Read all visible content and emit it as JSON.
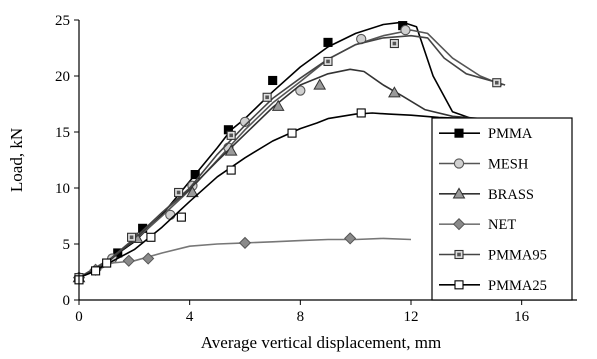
{
  "chart_data": {
    "type": "line",
    "xlabel": "Average vertical displacement, mm",
    "ylabel": "Load, kN",
    "xlim": [
      0,
      18
    ],
    "ylim": [
      0,
      25
    ],
    "xticks": [
      0,
      4,
      8,
      12,
      16
    ],
    "yticks": [
      0,
      5,
      10,
      15,
      20,
      25
    ],
    "grid": false,
    "legend_position": "right",
    "series": [
      {
        "name": "PMMA",
        "line_color": "#000000",
        "marker": "square",
        "marker_fill": "#000000",
        "marker_stroke": "#000000",
        "line": [
          [
            0,
            2
          ],
          [
            0.6,
            2.8
          ],
          [
            1.2,
            3.8
          ],
          [
            2,
            5.2
          ],
          [
            3,
            7.6
          ],
          [
            4,
            10.6
          ],
          [
            5,
            13.6
          ],
          [
            5.5,
            15.2
          ],
          [
            6,
            16.2
          ],
          [
            7,
            18.6
          ],
          [
            8,
            20.8
          ],
          [
            9,
            22.6
          ],
          [
            10,
            23.8
          ],
          [
            11,
            24.6
          ],
          [
            11.7,
            24.8
          ],
          [
            12.2,
            24.4
          ],
          [
            12.8,
            20
          ],
          [
            13.5,
            16.8
          ],
          [
            14.2,
            16.2
          ]
        ],
        "markers": [
          [
            0,
            2
          ],
          [
            1.4,
            4.2
          ],
          [
            2.3,
            6.4
          ],
          [
            4.2,
            11.2
          ],
          [
            5.4,
            15.2
          ],
          [
            7,
            19.6
          ],
          [
            9,
            23
          ],
          [
            11.7,
            24.5
          ]
        ]
      },
      {
        "name": "MESH",
        "line_color": "#555555",
        "marker": "circle",
        "marker_fill": "#d0d0d0",
        "marker_stroke": "#555555",
        "line": [
          [
            0,
            2
          ],
          [
            1,
            3.5
          ],
          [
            2,
            5.3
          ],
          [
            3,
            7.5
          ],
          [
            4,
            9.8
          ],
          [
            5,
            12.5
          ],
          [
            6,
            15.2
          ],
          [
            7,
            17.6
          ],
          [
            8,
            19.5
          ],
          [
            9,
            21.5
          ],
          [
            10,
            22.8
          ],
          [
            11,
            23.6
          ],
          [
            12,
            24.1
          ],
          [
            12.6,
            23.8
          ],
          [
            13.5,
            21.6
          ],
          [
            14.5,
            20
          ],
          [
            15.3,
            19.2
          ]
        ],
        "markers": [
          [
            0,
            2
          ],
          [
            1.2,
            3.7
          ],
          [
            3.3,
            7.6
          ],
          [
            4.1,
            10.2
          ],
          [
            5.4,
            13.6
          ],
          [
            6,
            15.9
          ],
          [
            8,
            18.7
          ],
          [
            10.2,
            23.3
          ],
          [
            11.8,
            24.1
          ]
        ]
      },
      {
        "name": "BRASS",
        "line_color": "#333333",
        "marker": "triangle",
        "marker_fill": "#9a9a9a",
        "marker_stroke": "#333333",
        "line": [
          [
            0,
            2
          ],
          [
            1,
            3.3
          ],
          [
            2,
            5.4
          ],
          [
            3,
            7.8
          ],
          [
            4,
            9.9
          ],
          [
            5,
            12.4
          ],
          [
            6,
            14.8
          ],
          [
            7,
            17.2
          ],
          [
            8,
            19.2
          ],
          [
            9,
            20.2
          ],
          [
            9.8,
            20.6
          ],
          [
            10.3,
            20.4
          ],
          [
            11,
            19.2
          ],
          [
            11.7,
            18.2
          ],
          [
            12.5,
            17
          ],
          [
            13.5,
            16.4
          ],
          [
            14.5,
            16.2
          ]
        ],
        "markers": [
          [
            0,
            2
          ],
          [
            2.1,
            5.5
          ],
          [
            4.1,
            9.6
          ],
          [
            5.5,
            13.3
          ],
          [
            7.2,
            17.3
          ],
          [
            8.7,
            19.2
          ],
          [
            11.4,
            18.5
          ]
        ]
      },
      {
        "name": "NET",
        "line_color": "#777777",
        "marker": "diamond",
        "marker_fill": "#8a8a8a",
        "marker_stroke": "#555555",
        "line": [
          [
            0,
            2
          ],
          [
            0.6,
            2.6
          ],
          [
            1.2,
            3.3
          ],
          [
            2,
            3.5
          ],
          [
            3,
            4.2
          ],
          [
            4,
            4.8
          ],
          [
            5,
            5
          ],
          [
            6,
            5.1
          ],
          [
            7,
            5.2
          ],
          [
            8,
            5.3
          ],
          [
            9,
            5.4
          ],
          [
            10,
            5.4
          ],
          [
            11,
            5.5
          ],
          [
            12,
            5.4
          ]
        ],
        "markers": [
          [
            0,
            2
          ],
          [
            0.6,
            2.7
          ],
          [
            1.8,
            3.5
          ],
          [
            2.5,
            3.7
          ],
          [
            6,
            5.1
          ],
          [
            9.8,
            5.5
          ]
        ]
      },
      {
        "name": "PMMA95",
        "line_color": "#444444",
        "marker": "boxed-square",
        "marker_fill": "#e0e0e0",
        "marker_stroke": "#333333",
        "line": [
          [
            0,
            2
          ],
          [
            1,
            3.4
          ],
          [
            2,
            5.5
          ],
          [
            3,
            7.8
          ],
          [
            4,
            10
          ],
          [
            5,
            13
          ],
          [
            6,
            15.6
          ],
          [
            7,
            18
          ],
          [
            8,
            19.8
          ],
          [
            9,
            21.5
          ],
          [
            10,
            22.8
          ],
          [
            11,
            23.4
          ],
          [
            12,
            23.6
          ],
          [
            12.6,
            23.4
          ],
          [
            13.2,
            21.6
          ],
          [
            14,
            20.2
          ],
          [
            15,
            19.5
          ],
          [
            15.4,
            19.2
          ]
        ],
        "markers": [
          [
            0,
            2
          ],
          [
            1.9,
            5.6
          ],
          [
            3.6,
            9.6
          ],
          [
            5.5,
            14.7
          ],
          [
            6.8,
            18.1
          ],
          [
            9,
            21.3
          ],
          [
            11.4,
            22.9
          ],
          [
            15.1,
            19.4
          ]
        ]
      },
      {
        "name": "PMMA25",
        "line_color": "#000000",
        "marker": "square",
        "marker_fill": "#ffffff",
        "marker_stroke": "#000000",
        "line": [
          [
            0,
            2
          ],
          [
            0.5,
            2.5
          ],
          [
            1,
            3.2
          ],
          [
            2,
            4.5
          ],
          [
            3,
            6.5
          ],
          [
            4,
            8.8
          ],
          [
            5,
            11
          ],
          [
            6,
            12.7
          ],
          [
            7,
            14.2
          ],
          [
            8,
            15.3
          ],
          [
            8.6,
            15.8
          ],
          [
            9,
            16.2
          ],
          [
            10,
            16.6
          ],
          [
            10.6,
            16.7
          ],
          [
            11.2,
            16.6
          ],
          [
            12,
            16.5
          ],
          [
            13,
            16.3
          ],
          [
            14,
            16.2
          ]
        ],
        "markers": [
          [
            0,
            1.8
          ],
          [
            0.6,
            2.6
          ],
          [
            1,
            3.3
          ],
          [
            2.6,
            5.6
          ],
          [
            3.7,
            7.4
          ],
          [
            5.5,
            11.6
          ],
          [
            7.7,
            14.9
          ],
          [
            10.2,
            16.7
          ]
        ]
      }
    ]
  }
}
